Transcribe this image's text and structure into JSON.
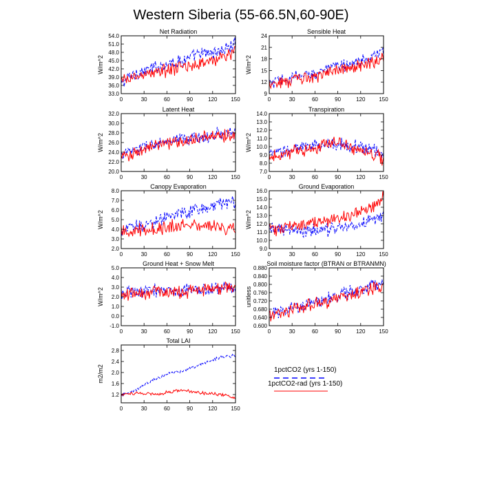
{
  "figure_title": "Western Siberia (55-66.5N,60-90E)",
  "legend": {
    "entries": [
      {
        "label": "1pctCO2 (yrs 1-150)",
        "color": "#0000ff",
        "dash": true
      },
      {
        "label": "1pctCO2-rad (yrs 1-150)",
        "color": "#ff0000",
        "dash": false
      }
    ]
  },
  "chart_data": [
    {
      "type": "line",
      "title": "Net Radiation",
      "ylabel": "W/m^2",
      "xlim": [
        0,
        150
      ],
      "xticks": [
        0,
        30,
        60,
        90,
        120,
        150
      ],
      "ylim": [
        33.0,
        54.0
      ],
      "yticks": [
        "33.0",
        "36.0",
        "39.0",
        "42.0",
        "45.0",
        "48.0",
        "51.0",
        "54.0"
      ],
      "series": [
        {
          "color": "#0000ff",
          "dash": true,
          "x": [
            0,
            10,
            20,
            30,
            40,
            50,
            60,
            70,
            80,
            90,
            100,
            110,
            120,
            130,
            140,
            150
          ],
          "values": [
            36.5,
            39.0,
            40.5,
            41.0,
            42.0,
            43.0,
            44.0,
            44.5,
            45.0,
            46.0,
            47.0,
            47.5,
            48.0,
            48.5,
            49.5,
            51.0
          ]
        },
        {
          "color": "#ff0000",
          "dash": false,
          "x": [
            0,
            10,
            20,
            30,
            40,
            50,
            60,
            70,
            80,
            90,
            100,
            110,
            120,
            130,
            140,
            150
          ],
          "values": [
            37.0,
            38.5,
            39.0,
            40.0,
            40.5,
            41.0,
            41.5,
            42.0,
            42.5,
            43.0,
            43.5,
            44.5,
            45.0,
            46.0,
            47.0,
            48.5
          ]
        }
      ]
    },
    {
      "type": "line",
      "title": "Sensible Heat",
      "ylabel": "W/m^2",
      "xlim": [
        0,
        150
      ],
      "xticks": [
        0,
        30,
        60,
        90,
        120,
        150
      ],
      "ylim": [
        9,
        24
      ],
      "yticks": [
        "9",
        "12",
        "15",
        "18",
        "21",
        "24"
      ],
      "series": [
        {
          "color": "#0000ff",
          "dash": true,
          "x": [
            0,
            10,
            20,
            30,
            40,
            50,
            60,
            70,
            80,
            90,
            100,
            110,
            120,
            130,
            140,
            150
          ],
          "values": [
            11.5,
            12.0,
            12.5,
            13.0,
            13.5,
            14.0,
            14.5,
            15.0,
            15.5,
            16.0,
            16.5,
            17.0,
            17.5,
            18.0,
            19.0,
            19.5
          ]
        },
        {
          "color": "#ff0000",
          "dash": false,
          "x": [
            0,
            10,
            20,
            30,
            40,
            50,
            60,
            70,
            80,
            90,
            100,
            110,
            120,
            130,
            140,
            150
          ],
          "values": [
            12.0,
            12.0,
            12.0,
            12.5,
            12.5,
            13.0,
            13.5,
            14.0,
            14.5,
            15.0,
            15.5,
            16.0,
            16.5,
            17.0,
            17.5,
            18.0
          ]
        }
      ]
    },
    {
      "type": "line",
      "title": "Latent Heat",
      "ylabel": "W/m^2",
      "xlim": [
        0,
        150
      ],
      "xticks": [
        0,
        30,
        60,
        90,
        120,
        150
      ],
      "ylim": [
        20.0,
        32.0
      ],
      "yticks": [
        "20.0",
        "22.0",
        "24.0",
        "26.0",
        "28.0",
        "30.0",
        "32.0"
      ],
      "series": [
        {
          "color": "#0000ff",
          "dash": true,
          "x": [
            0,
            10,
            20,
            30,
            40,
            50,
            60,
            70,
            80,
            90,
            100,
            110,
            120,
            130,
            140,
            150
          ],
          "values": [
            23.5,
            24.0,
            24.5,
            25.0,
            25.5,
            25.8,
            26.0,
            26.2,
            26.5,
            26.8,
            27.0,
            27.2,
            27.5,
            27.8,
            28.0,
            28.2
          ]
        },
        {
          "color": "#ff0000",
          "dash": false,
          "x": [
            0,
            10,
            20,
            30,
            40,
            50,
            60,
            70,
            80,
            90,
            100,
            110,
            120,
            130,
            140,
            150
          ],
          "values": [
            23.0,
            23.5,
            24.0,
            24.5,
            25.0,
            25.5,
            25.8,
            26.0,
            26.3,
            26.5,
            26.8,
            27.0,
            27.2,
            27.5,
            27.6,
            27.8
          ]
        }
      ]
    },
    {
      "type": "line",
      "title": "Transpiration",
      "ylabel": "W/m^2",
      "xlim": [
        0,
        150
      ],
      "xticks": [
        0,
        30,
        60,
        90,
        120,
        150
      ],
      "ylim": [
        7.0,
        14.0
      ],
      "yticks": [
        "7.0",
        "8.0",
        "9.0",
        "10.0",
        "11.0",
        "12.0",
        "13.0",
        "14.0"
      ],
      "series": [
        {
          "color": "#0000ff",
          "dash": true,
          "x": [
            0,
            10,
            20,
            30,
            40,
            50,
            60,
            70,
            80,
            90,
            100,
            110,
            120,
            130,
            140,
            150
          ],
          "values": [
            9.0,
            9.2,
            9.5,
            9.7,
            9.8,
            10.0,
            10.1,
            10.2,
            10.3,
            10.3,
            10.2,
            10.1,
            10.0,
            9.8,
            9.5,
            9.0
          ]
        },
        {
          "color": "#ff0000",
          "dash": false,
          "x": [
            0,
            10,
            20,
            30,
            40,
            50,
            60,
            70,
            80,
            90,
            100,
            110,
            120,
            130,
            140,
            150
          ],
          "values": [
            9.0,
            9.1,
            9.2,
            9.3,
            9.5,
            9.6,
            9.8,
            10.0,
            10.5,
            10.3,
            10.0,
            9.8,
            9.5,
            9.3,
            9.0,
            8.3
          ]
        }
      ]
    },
    {
      "type": "line",
      "title": "Canopy Evaporation",
      "ylabel": "W/m^2",
      "xlim": [
        0,
        150
      ],
      "xticks": [
        0,
        30,
        60,
        90,
        120,
        150
      ],
      "ylim": [
        2.0,
        8.0
      ],
      "yticks": [
        "2.0",
        "3.0",
        "4.0",
        "5.0",
        "6.0",
        "7.0",
        "8.0"
      ],
      "series": [
        {
          "color": "#0000ff",
          "dash": true,
          "x": [
            0,
            10,
            20,
            30,
            40,
            50,
            60,
            70,
            80,
            90,
            100,
            110,
            120,
            130,
            140,
            150
          ],
          "values": [
            3.9,
            4.1,
            4.3,
            4.5,
            4.7,
            5.0,
            5.3,
            5.5,
            5.6,
            5.8,
            6.0,
            6.3,
            6.5,
            6.6,
            6.7,
            6.8
          ]
        },
        {
          "color": "#ff0000",
          "dash": false,
          "x": [
            0,
            10,
            20,
            30,
            40,
            50,
            60,
            70,
            80,
            90,
            100,
            110,
            120,
            130,
            140,
            150
          ],
          "values": [
            3.8,
            3.8,
            3.9,
            3.9,
            4.0,
            4.1,
            4.2,
            4.3,
            4.4,
            4.4,
            4.3,
            4.3,
            4.2,
            4.2,
            4.1,
            4.0
          ]
        }
      ]
    },
    {
      "type": "line",
      "title": "Ground Evaporation",
      "ylabel": "W/m^2",
      "xlim": [
        0,
        150
      ],
      "xticks": [
        0,
        30,
        60,
        90,
        120,
        150
      ],
      "ylim": [
        9.0,
        16.0
      ],
      "yticks": [
        "9.0",
        "10.0",
        "11.0",
        "12.0",
        "13.0",
        "14.0",
        "15.0",
        "16.0"
      ],
      "series": [
        {
          "color": "#0000ff",
          "dash": true,
          "x": [
            0,
            10,
            20,
            30,
            40,
            50,
            60,
            70,
            80,
            90,
            100,
            110,
            120,
            130,
            140,
            150
          ],
          "values": [
            11.3,
            11.3,
            11.2,
            11.2,
            11.1,
            11.1,
            11.2,
            11.2,
            11.3,
            11.4,
            11.6,
            11.8,
            12.0,
            12.3,
            12.6,
            13.0
          ]
        },
        {
          "color": "#ff0000",
          "dash": false,
          "x": [
            0,
            10,
            20,
            30,
            40,
            50,
            60,
            70,
            80,
            90,
            100,
            110,
            120,
            130,
            140,
            150
          ],
          "values": [
            11.3,
            11.4,
            11.5,
            11.7,
            11.8,
            12.0,
            12.1,
            12.2,
            12.4,
            12.6,
            12.8,
            13.1,
            13.5,
            13.9,
            14.5,
            15.3
          ]
        }
      ]
    },
    {
      "type": "line",
      "title": "Ground Heat + Snow Melt",
      "ylabel": "W/m^2",
      "xlim": [
        0,
        150
      ],
      "xticks": [
        0,
        30,
        60,
        90,
        120,
        150
      ],
      "ylim": [
        -1.0,
        5.0
      ],
      "yticks": [
        "-1.0",
        "0.0",
        "1.0",
        "2.0",
        "3.0",
        "4.0",
        "5.0"
      ],
      "series": [
        {
          "color": "#0000ff",
          "dash": true,
          "x": [
            0,
            10,
            20,
            30,
            40,
            50,
            60,
            70,
            80,
            90,
            100,
            110,
            120,
            130,
            140,
            150
          ],
          "values": [
            2.4,
            2.5,
            2.6,
            2.5,
            2.6,
            2.7,
            2.6,
            2.7,
            2.6,
            2.7,
            2.8,
            2.7,
            2.8,
            2.9,
            2.9,
            2.8
          ]
        },
        {
          "color": "#ff0000",
          "dash": false,
          "x": [
            0,
            10,
            20,
            30,
            40,
            50,
            60,
            70,
            80,
            90,
            100,
            110,
            120,
            130,
            140,
            150
          ],
          "values": [
            2.3,
            2.4,
            2.5,
            2.4,
            2.5,
            2.6,
            2.5,
            2.6,
            2.5,
            2.6,
            2.6,
            2.7,
            2.7,
            2.8,
            2.7,
            2.8
          ]
        }
      ]
    },
    {
      "type": "line",
      "title": "Soil moisture factor (BTRAN or BTRANMN)",
      "ylabel": "unitless",
      "xlim": [
        0,
        150
      ],
      "xticks": [
        0,
        30,
        60,
        90,
        120,
        150
      ],
      "ylim": [
        0.6,
        0.88
      ],
      "yticks": [
        "0.600",
        "0.640",
        "0.680",
        "0.720",
        "0.760",
        "0.800",
        "0.840",
        "0.880"
      ],
      "series": [
        {
          "color": "#0000ff",
          "dash": true,
          "x": [
            0,
            10,
            20,
            30,
            40,
            50,
            60,
            70,
            80,
            90,
            100,
            110,
            120,
            130,
            140,
            150
          ],
          "values": [
            0.655,
            0.665,
            0.675,
            0.685,
            0.695,
            0.705,
            0.715,
            0.725,
            0.735,
            0.745,
            0.755,
            0.765,
            0.775,
            0.785,
            0.795,
            0.81
          ]
        },
        {
          "color": "#ff0000",
          "dash": false,
          "x": [
            0,
            10,
            20,
            30,
            40,
            50,
            60,
            70,
            80,
            90,
            100,
            110,
            120,
            130,
            140,
            150
          ],
          "values": [
            0.65,
            0.658,
            0.665,
            0.675,
            0.685,
            0.695,
            0.705,
            0.712,
            0.722,
            0.732,
            0.742,
            0.752,
            0.762,
            0.772,
            0.782,
            0.795
          ]
        }
      ]
    },
    {
      "type": "line",
      "title": "Total LAI",
      "ylabel": "m2/m2",
      "xlim": [
        0,
        150
      ],
      "xticks": [
        0,
        30,
        60,
        90,
        120,
        150
      ],
      "ylim": [
        0.9,
        3.0
      ],
      "yticks": [
        "1.2",
        "1.6",
        "2.0",
        "2.4",
        "2.8"
      ],
      "series": [
        {
          "color": "#0000ff",
          "dash": true,
          "x": [
            0,
            10,
            20,
            30,
            40,
            50,
            60,
            70,
            80,
            90,
            100,
            110,
            120,
            130,
            140,
            150
          ],
          "values": [
            1.18,
            1.25,
            1.38,
            1.55,
            1.7,
            1.82,
            1.95,
            2.02,
            2.05,
            2.15,
            2.25,
            2.35,
            2.45,
            2.55,
            2.58,
            2.62
          ]
        },
        {
          "color": "#ff0000",
          "dash": false,
          "x": [
            0,
            10,
            20,
            30,
            40,
            50,
            60,
            70,
            80,
            90,
            100,
            110,
            120,
            130,
            140,
            150
          ],
          "values": [
            1.2,
            1.22,
            1.26,
            1.24,
            1.22,
            1.22,
            1.28,
            1.32,
            1.38,
            1.32,
            1.28,
            1.25,
            1.24,
            1.2,
            1.15,
            1.05
          ]
        }
      ]
    }
  ]
}
